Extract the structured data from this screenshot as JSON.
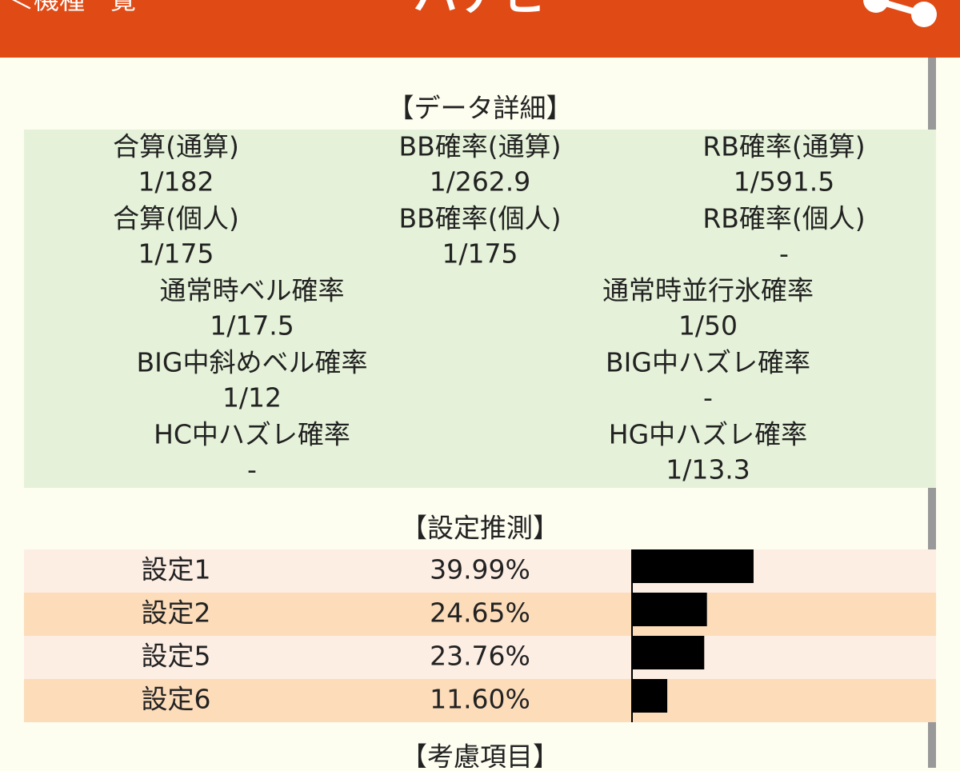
{
  "header": {
    "back": "＜機種一覧",
    "title": "ハナビ"
  },
  "data_detail": {
    "title": "【データ詳細】",
    "rows": [
      [
        {
          "label": "合算(通算)",
          "value": "1/182"
        },
        {
          "label": "BB確率(通算)",
          "value": "1/262.9"
        },
        {
          "label": "RB確率(通算)",
          "value": "1/591.5"
        }
      ],
      [
        {
          "label": "合算(個人)",
          "value": "1/175"
        },
        {
          "label": "BB確率(個人)",
          "value": "1/175"
        },
        {
          "label": "RB確率(個人)",
          "value": "-"
        }
      ],
      [
        {
          "label": "通常時ベル確率",
          "value": "1/17.5"
        },
        {
          "label": "通常時並行氷確率",
          "value": "1/50"
        }
      ],
      [
        {
          "label": "BIG中斜めベル確率",
          "value": "1/12"
        },
        {
          "label": "BIG中ハズレ確率",
          "value": "-"
        }
      ],
      [
        {
          "label": "HC中ハズレ確率",
          "value": "-"
        },
        {
          "label": "HG中ハズレ確率",
          "value": "1/13.3"
        }
      ]
    ]
  },
  "estimate": {
    "title": "【設定推測】",
    "rows": [
      {
        "name": "設定1",
        "value": 39.99,
        "label": "39.99%"
      },
      {
        "name": "設定2",
        "value": 24.65,
        "label": "24.65%"
      },
      {
        "name": "設定5",
        "value": 23.76,
        "label": "23.76%"
      },
      {
        "name": "設定6",
        "value": 11.6,
        "label": "11.60%"
      }
    ]
  },
  "next_section": {
    "title": "【考慮項目】"
  }
}
